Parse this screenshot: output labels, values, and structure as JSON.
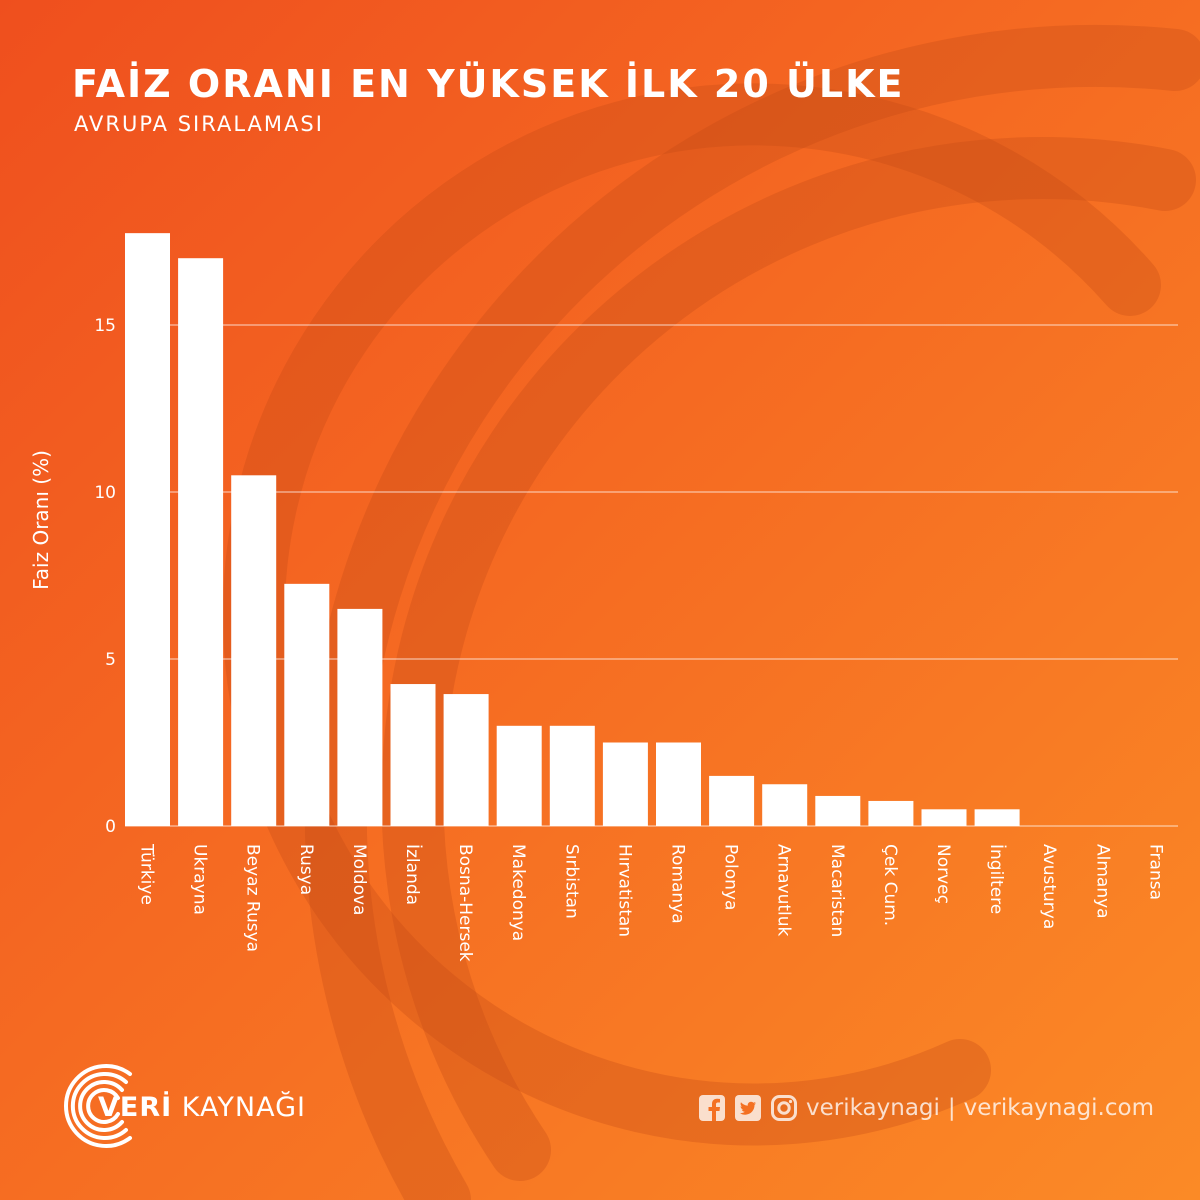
{
  "header": {
    "title": "FAİZ ORANI EN YÜKSEK İLK 20 ÜLKE",
    "subtitle": "AVRUPA SIRALAMASI"
  },
  "chart_data": {
    "type": "bar",
    "title": "FAİZ ORANI EN YÜKSEK İLK 20 ÜLKE",
    "subtitle": "AVRUPA SIRALAMASI",
    "ylabel": "Faiz Oranı (%)",
    "xlabel": "",
    "ylim": [
      0,
      17.5
    ],
    "yticks": [
      0,
      5,
      10,
      15
    ],
    "grid": true,
    "categories": [
      "Türkiye",
      "Ukrayna",
      "Beyaz Rusya",
      "Rusya",
      "Moldova",
      "İzlanda",
      "Bosna-Hersek",
      "Makedonya",
      "Sırbistan",
      "Hırvatistan",
      "Romanya",
      "Polonya",
      "Arnavutluk",
      "Macaristan",
      "Çek Cum.",
      "Norveç",
      "İngiltere",
      "Avusturya",
      "Almanya",
      "Fransa"
    ],
    "values": [
      17.75,
      17.0,
      10.5,
      7.25,
      6.5,
      4.25,
      3.95,
      3.0,
      3.0,
      2.5,
      2.5,
      1.5,
      1.25,
      0.9,
      0.75,
      0.5,
      0.5,
      0.0,
      0.0,
      0.0
    ],
    "bar_color": "#ffffff"
  },
  "footer": {
    "logo_bold": "VERİ",
    "logo_light": "KAYNAĞI",
    "social_handle": "verikaynagi",
    "separator": "|",
    "website": "verikaynagi.com",
    "icons": [
      "facebook-icon",
      "twitter-icon",
      "instagram-icon"
    ]
  },
  "colors": {
    "bg_start": "#ef4f1e",
    "bg_end": "#fb8a26",
    "arc": "#c44a16",
    "text": "#ffffff"
  }
}
